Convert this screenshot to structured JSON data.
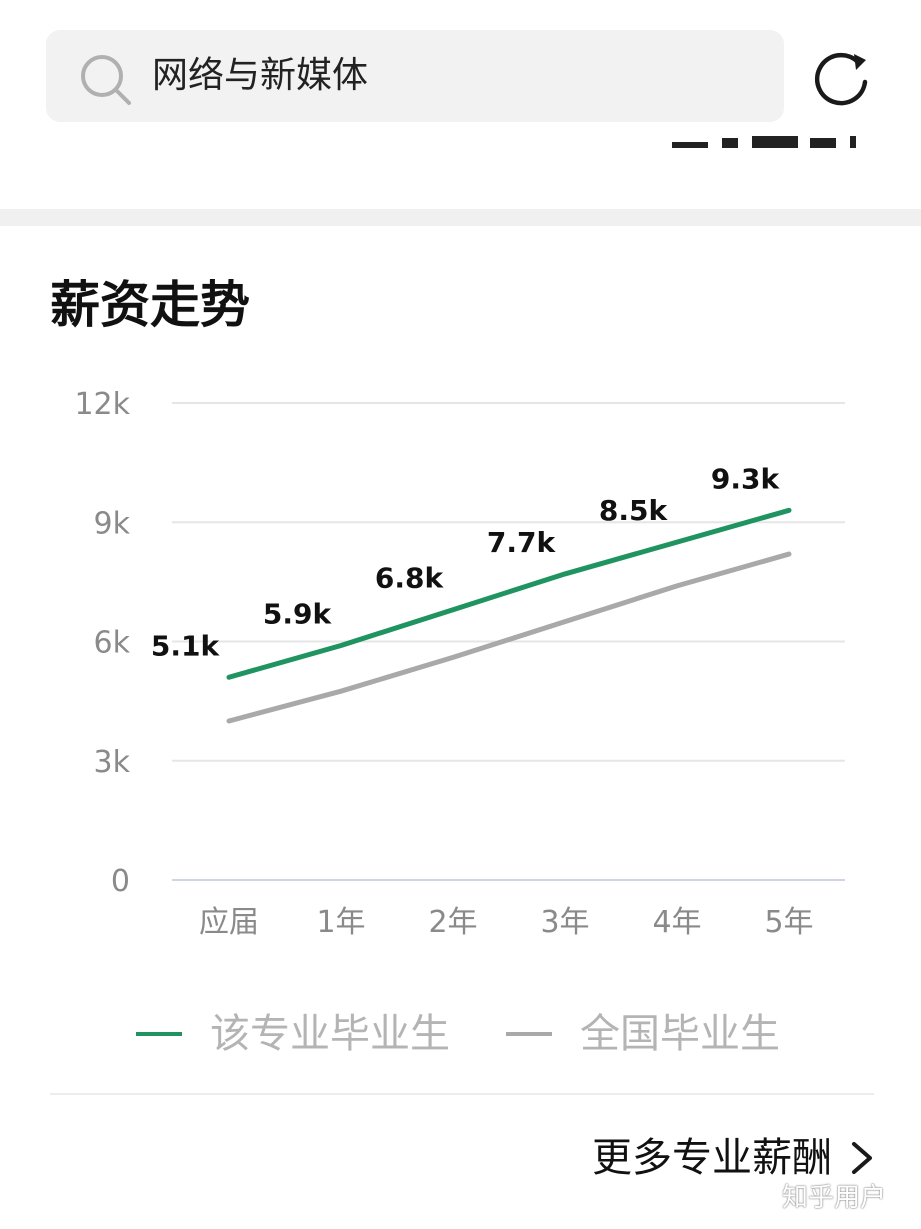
{
  "search": {
    "query": "网络与新媒体"
  },
  "section": {
    "title": "薪资走势"
  },
  "chart_data": {
    "type": "line",
    "title": "",
    "xlabel": "",
    "ylabel": "",
    "categories": [
      "应届",
      "1年",
      "2年",
      "3年",
      "4年",
      "5年"
    ],
    "yticks": [
      "0",
      "3k",
      "6k",
      "9k",
      "12k"
    ],
    "ylim": [
      0,
      12
    ],
    "grid": true,
    "legend_position": "bottom",
    "series": [
      {
        "name": "该专业毕业生",
        "color": "#1f9460",
        "values": [
          5.1,
          5.9,
          6.8,
          7.7,
          8.5,
          9.3
        ],
        "labels": [
          "5.1k",
          "5.9k",
          "6.8k",
          "7.7k",
          "8.5k",
          "9.3k"
        ]
      },
      {
        "name": "全国毕业生",
        "color": "#a9a9a9",
        "values": [
          4.0,
          4.75,
          5.6,
          6.5,
          7.4,
          8.2
        ]
      }
    ]
  },
  "footer": {
    "more_label": "更多专业薪酬"
  },
  "watermark": "知乎用户"
}
